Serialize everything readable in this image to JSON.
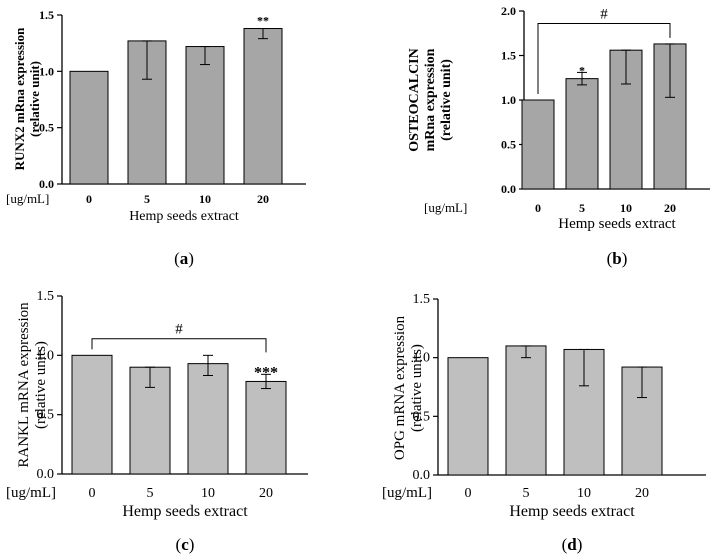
{
  "chart_data": [
    {
      "type": "bar",
      "panel_label": "a",
      "categories": [
        "0",
        "5",
        "10",
        "20"
      ],
      "unit_label": "[ug/mL]",
      "xlabel": "Hemp seeds extract",
      "ylabel_lines": [
        "RUNX2 mRna expression",
        "(relative unit)"
      ],
      "ylim": [
        0,
        1.5
      ],
      "yticks": [
        "0.0",
        "0.5",
        "1.0",
        "1.5"
      ],
      "series": [
        {
          "values": [
            1.0,
            1.27,
            1.22,
            1.38
          ]
        }
      ],
      "error_low": [
        1.0,
        0.93,
        1.06,
        1.29
      ],
      "error_high": [
        1.0,
        1.27,
        1.22,
        1.38
      ],
      "annotations": [
        "",
        "",
        "",
        "**"
      ],
      "bracket": null,
      "colors": {
        "bar": "#a6a6a6",
        "stroke": "#000000"
      },
      "font_bold": true
    },
    {
      "type": "bar",
      "panel_label": "b",
      "categories": [
        "0",
        "5",
        "10",
        "20"
      ],
      "unit_label": "[ug/mL]",
      "xlabel": "Hemp seeds extract",
      "ylabel_lines": [
        "OSTEOCALCIN",
        "mRna expression",
        "(relative unit)"
      ],
      "ylim": [
        0,
        2.0
      ],
      "yticks": [
        "0.0",
        "0.5",
        "1.0",
        "1.5",
        "2.0"
      ],
      "series": [
        {
          "values": [
            1.0,
            1.24,
            1.56,
            1.63
          ]
        }
      ],
      "error_low": [
        1.0,
        1.17,
        1.18,
        1.03
      ],
      "error_high": [
        1.0,
        1.31,
        1.56,
        1.63
      ],
      "annotations": [
        "",
        "*",
        "",
        ""
      ],
      "bracket": {
        "from": 0,
        "to": 3,
        "level": 1.86,
        "label": "#"
      },
      "colors": {
        "bar": "#a6a6a6",
        "stroke": "#000000"
      },
      "font_bold": true
    },
    {
      "type": "bar",
      "panel_label": "c",
      "categories": [
        "0",
        "5",
        "10",
        "20"
      ],
      "unit_label": "[ug/mL]",
      "xlabel": "Hemp seeds extract",
      "ylabel_lines": [
        "RANKL mRNA expression",
        "(relative units)"
      ],
      "ylim": [
        0,
        1.5
      ],
      "yticks": [
        "0.0",
        "0.5",
        "1.0",
        "1.5"
      ],
      "series": [
        {
          "values": [
            1.0,
            0.9,
            0.93,
            0.78
          ]
        }
      ],
      "error_low": [
        1.0,
        0.73,
        0.83,
        0.72
      ],
      "error_high": [
        1.0,
        0.9,
        1.0,
        0.84
      ],
      "annotations": [
        "",
        "",
        "",
        "***"
      ],
      "bracket": {
        "from": 0,
        "to": 3,
        "level": 1.14,
        "label": "#"
      },
      "colors": {
        "bar": "#bfbfbf",
        "stroke": "#000000"
      },
      "font_bold": false
    },
    {
      "type": "bar",
      "panel_label": "d",
      "categories": [
        "0",
        "5",
        "10",
        "20"
      ],
      "unit_label": "[ug/mL]",
      "xlabel": "Hemp seeds extract",
      "ylabel_lines": [
        "OPG mRNA expression",
        "(relative units)"
      ],
      "ylim": [
        0,
        1.5
      ],
      "yticks": [
        "0.0",
        "0.5",
        "1.0",
        "1.5"
      ],
      "series": [
        {
          "values": [
            1.0,
            1.1,
            1.07,
            0.92
          ]
        }
      ],
      "error_low": [
        1.0,
        1.0,
        0.76,
        0.66
      ],
      "error_high": [
        1.0,
        1.1,
        1.07,
        0.92
      ],
      "annotations": [
        "",
        "",
        "",
        ""
      ],
      "bracket": null,
      "colors": {
        "bar": "#bfbfbf",
        "stroke": "#000000"
      },
      "font_bold": false
    }
  ]
}
